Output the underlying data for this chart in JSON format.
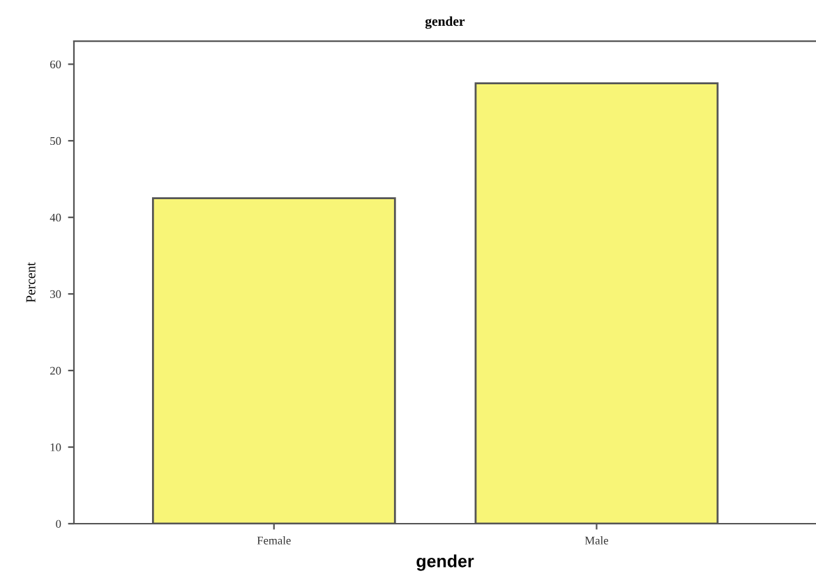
{
  "chart_data": {
    "type": "bar",
    "title": "gender",
    "xlabel": "gender",
    "ylabel": "Percent",
    "categories": [
      "Female",
      "Male"
    ],
    "values": [
      42.5,
      57.5
    ],
    "color": "#f8f577",
    "ylim": [
      0,
      63
    ],
    "yticks": [
      0,
      10,
      20,
      30,
      40,
      50,
      60
    ],
    "grid": false
  }
}
